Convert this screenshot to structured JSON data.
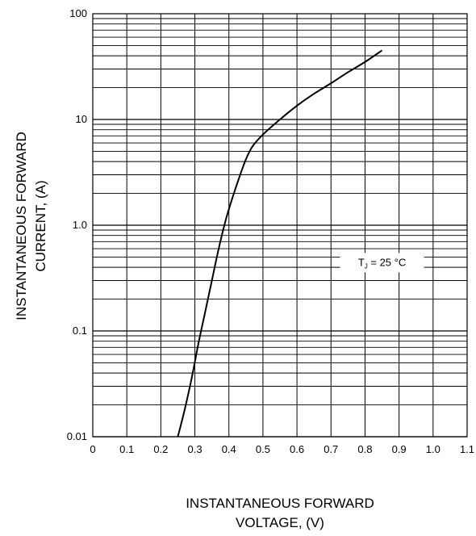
{
  "chart_data": {
    "type": "line",
    "xlabel_lines": [
      "INSTANTANEOUS FORWARD",
      "VOLTAGE, (V)"
    ],
    "ylabel_lines": [
      "INSTANTANEOUS FORWARD",
      "CURRENT, (A)"
    ],
    "xlim": [
      0,
      1.1
    ],
    "ylim": [
      0.01,
      100
    ],
    "yscale": "log",
    "grid": true,
    "x_ticks": [
      "0",
      "0.1",
      "0.2",
      "0.3",
      "0.4",
      "0.5",
      "0.6",
      "0.7",
      "0.8",
      "0.9",
      "1.0",
      "1.1"
    ],
    "y_ticks": [
      {
        "value": 100,
        "label": "100"
      },
      {
        "value": 10,
        "label": "10"
      },
      {
        "value": 1,
        "label": "1.0"
      },
      {
        "value": 0.1,
        "label": "0.1"
      },
      {
        "value": 0.01,
        "label": "0.01"
      }
    ],
    "annotation": {
      "main": "T",
      "sub": "J",
      "rest": " = 25 °C",
      "x": 0.85,
      "y": 0.45
    },
    "series": [
      {
        "color": "#000000",
        "x": [
          0.25,
          0.27,
          0.29,
          0.31,
          0.33,
          0.35,
          0.37,
          0.39,
          0.41,
          0.43,
          0.45,
          0.47,
          0.5,
          0.55,
          0.6,
          0.65,
          0.7,
          0.75,
          0.8,
          0.85
        ],
        "y": [
          0.01,
          0.018,
          0.035,
          0.075,
          0.15,
          0.3,
          0.6,
          1.1,
          1.8,
          2.8,
          4.2,
          5.6,
          7.2,
          10,
          13.5,
          17.5,
          22,
          28,
          35,
          45
        ]
      }
    ]
  }
}
